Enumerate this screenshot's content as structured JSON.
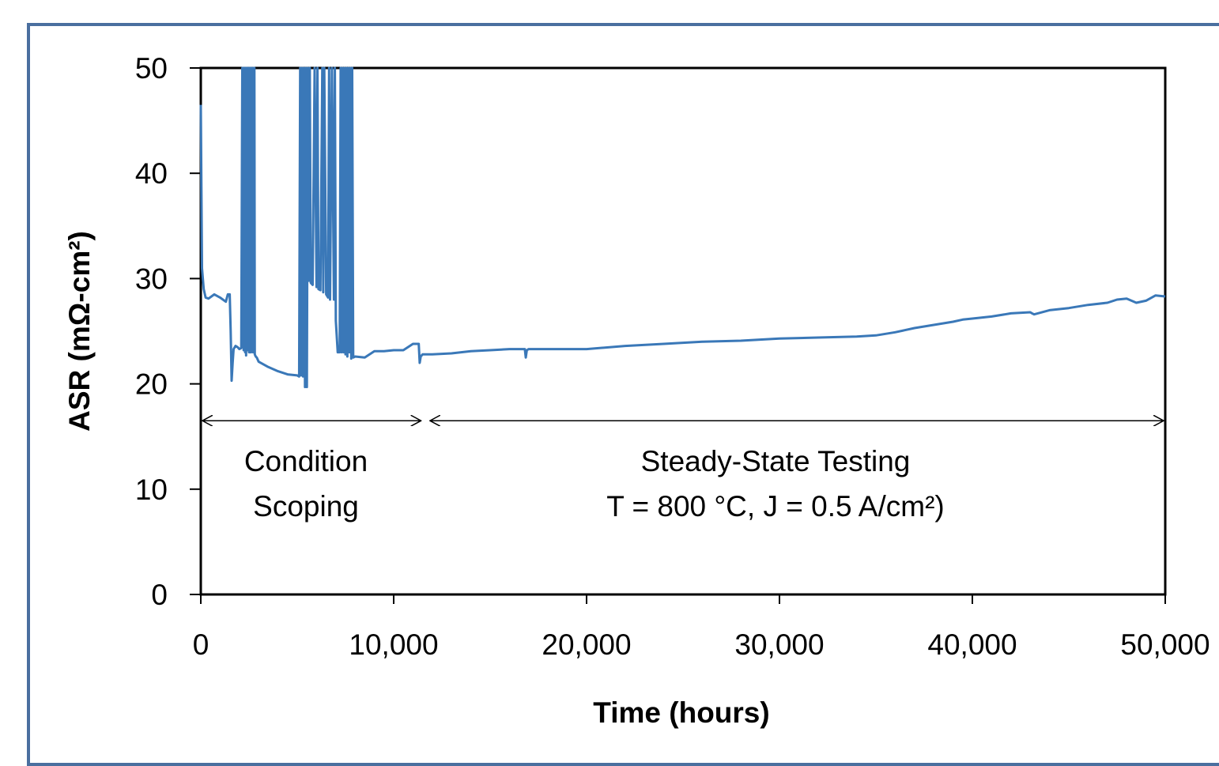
{
  "chart_data": {
    "type": "line",
    "title": "",
    "xlabel": "Time (hours)",
    "ylabel": "ASR (mΩ-cm²)",
    "xlim": [
      0,
      50000
    ],
    "ylim": [
      0,
      50
    ],
    "x_ticks": [
      0,
      10000,
      20000,
      30000,
      40000,
      50000
    ],
    "x_tick_labels": [
      "0",
      "10,000",
      "20,000",
      "30,000",
      "40,000",
      "50,000"
    ],
    "y_ticks": [
      0,
      10,
      20,
      30,
      40,
      50
    ],
    "y_tick_labels": [
      "0",
      "10",
      "20",
      "30",
      "40",
      "50"
    ],
    "grid": false,
    "legend": "none",
    "series_color": "#3a78b8",
    "series": [
      {
        "x": [
          0,
          60,
          150,
          250,
          400,
          700,
          1000,
          1300,
          1400,
          1500,
          1550,
          1600,
          1650,
          1700,
          1800,
          1900,
          2000,
          2100,
          2150,
          2200,
          2220,
          2250,
          2280,
          2300,
          2320,
          2350,
          2380,
          2400,
          2450,
          2500,
          2520,
          2550,
          2580,
          2600,
          2650,
          2700,
          2720,
          2750,
          2780,
          2800,
          2850,
          2900,
          3000,
          3500,
          4000,
          4500,
          5000,
          5100,
          5150,
          5200,
          5250,
          5300,
          5350,
          5400,
          5450,
          5500,
          5550,
          5600,
          5650,
          5700,
          5800,
          5900,
          6000,
          6050,
          6100,
          6200,
          6300,
          6350,
          6400,
          6500,
          6600,
          6650,
          6700,
          6800,
          6900,
          6950,
          7000,
          7100,
          7200,
          7250,
          7300,
          7350,
          7400,
          7450,
          7500,
          7550,
          7600,
          7650,
          7700,
          7750,
          7800,
          7850,
          7900,
          8000,
          8500,
          9000,
          9500,
          10000,
          10500,
          11000,
          11300,
          11350,
          11400,
          11500,
          11700,
          12000,
          13000,
          14000,
          15000,
          16000,
          16800,
          16850,
          16900,
          17000,
          18000,
          20000,
          22000,
          24000,
          26000,
          28000,
          30000,
          32000,
          34000,
          35000,
          36000,
          37000,
          38000,
          39000,
          39500,
          40000,
          41000,
          42000,
          43000,
          43100,
          43200,
          44000,
          45000,
          46000,
          47000,
          47500,
          48000,
          48500,
          49000,
          49500,
          50000
        ],
        "y": [
          46.5,
          31,
          29,
          28.2,
          28.1,
          28.5,
          28.2,
          27.8,
          28.5,
          28.5,
          25,
          20.3,
          22,
          23.3,
          23.6,
          23.5,
          23.3,
          23.4,
          50,
          50,
          23.2,
          50,
          50,
          23.0,
          50,
          22.7,
          50,
          23.2,
          50,
          23.0,
          50,
          23.0,
          50,
          23.0,
          50,
          23.0,
          50,
          23.0,
          50,
          22.8,
          22.6,
          22.5,
          22.1,
          21.6,
          21.2,
          20.9,
          20.8,
          20.7,
          50,
          20.8,
          50,
          20.7,
          50,
          19.7,
          50,
          19.7,
          50,
          29.8,
          50,
          29.6,
          29.4,
          50,
          29.2,
          50,
          29.0,
          28.9,
          50,
          28.7,
          50,
          28.5,
          28.2,
          50,
          28.0,
          50,
          28.0,
          50,
          26.0,
          23.0,
          23.0,
          50,
          23.0,
          50,
          23.0,
          50,
          22.8,
          50,
          22.6,
          50,
          23.0,
          50,
          22.4,
          50,
          22.5,
          22.6,
          22.5,
          23.1,
          23.1,
          23.2,
          23.2,
          23.8,
          23.8,
          22,
          22.6,
          22.8,
          22.8,
          22.8,
          22.9,
          23.1,
          23.2,
          23.3,
          23.3,
          22.5,
          23.2,
          23.3,
          23.3,
          23.3,
          23.6,
          23.8,
          24.0,
          24.1,
          24.3,
          24.4,
          24.5,
          24.6,
          24.9,
          25.3,
          25.6,
          25.9,
          26.1,
          26.2,
          26.4,
          26.7,
          26.8,
          26.7,
          26.6,
          27.0,
          27.2,
          27.5,
          27.7,
          28.0,
          28.1,
          27.7,
          27.9,
          28.4,
          28.3
        ]
      }
    ],
    "annotations": {
      "left_region_line1": "Condition",
      "left_region_line2": "Scoping",
      "right_region_line1": "Steady-State Testing",
      "right_region_line2": "T = 800 °C, J = 0.5 A/cm²)",
      "left_region_x": [
        0,
        11500
      ],
      "right_region_x": [
        11800,
        50000
      ],
      "arrow_y": 16.5
    }
  }
}
